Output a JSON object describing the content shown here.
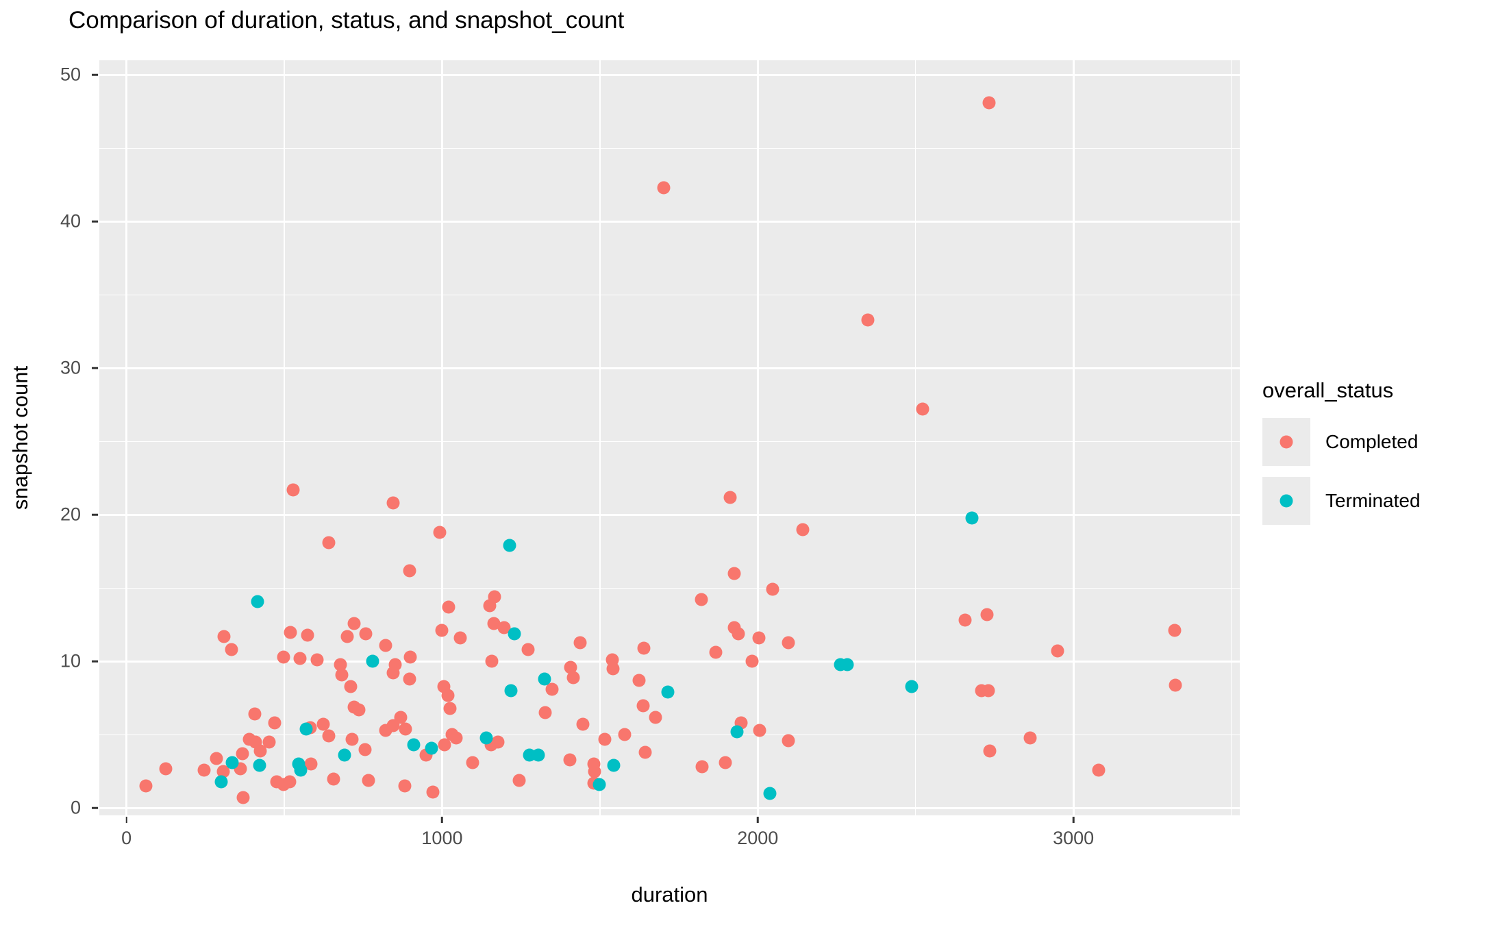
{
  "chart_data": {
    "type": "scatter",
    "title": "Comparison of duration, status, and snapshot_count",
    "xlabel": "duration",
    "ylabel": "snapshot count",
    "x_ticks": [
      0,
      1000,
      2000,
      3000
    ],
    "x_minor_ticks": [
      500,
      1500,
      2500,
      3500
    ],
    "y_ticks": [
      0,
      10,
      20,
      30,
      40,
      50
    ],
    "y_minor_ticks": [
      5,
      15,
      25,
      35,
      45
    ],
    "x_domain": [
      -86,
      3527
    ],
    "y_domain": [
      -0.5,
      51.0
    ],
    "grid": "on",
    "colors": {
      "panel_background": "#EBEBEB",
      "gridline": "#FFFFFF",
      "tick_text": "#4D4D4D",
      "axis_text": "#000000"
    },
    "legend": {
      "title": "overall_status",
      "position": "right"
    },
    "series": [
      {
        "name": "Completed",
        "color": "#F8766D",
        "points": [
          [
            62,
            1.5
          ],
          [
            125,
            2.7
          ],
          [
            246,
            2.6
          ],
          [
            285,
            3.4
          ],
          [
            307,
            2.5
          ],
          [
            309,
            11.7
          ],
          [
            333,
            10.8
          ],
          [
            361,
            2.7
          ],
          [
            368,
            3.7
          ],
          [
            370,
            0.7
          ],
          [
            390,
            4.7
          ],
          [
            407,
            6.4
          ],
          [
            409,
            4.5
          ],
          [
            424,
            3.9
          ],
          [
            452,
            4.5
          ],
          [
            470,
            5.8
          ],
          [
            475,
            1.8
          ],
          [
            497,
            1.6
          ],
          [
            498,
            10.3
          ],
          [
            518,
            1.8
          ],
          [
            520,
            12.0
          ],
          [
            528,
            21.7
          ],
          [
            550,
            10.2
          ],
          [
            574,
            11.8
          ],
          [
            583,
            5.5
          ],
          [
            585,
            3.0
          ],
          [
            604,
            10.1
          ],
          [
            624,
            5.7
          ],
          [
            640,
            4.9
          ],
          [
            641,
            18.1
          ],
          [
            657,
            2.0
          ],
          [
            678,
            9.8
          ],
          [
            683,
            9.1
          ],
          [
            700,
            11.7
          ],
          [
            710,
            8.3
          ],
          [
            715,
            4.7
          ],
          [
            721,
            12.6
          ],
          [
            721,
            6.9
          ],
          [
            737,
            6.7
          ],
          [
            756,
            4.0
          ],
          [
            758,
            11.9
          ],
          [
            767,
            1.9
          ],
          [
            820,
            11.1
          ],
          [
            821,
            5.3
          ],
          [
            845,
            20.8
          ],
          [
            845,
            9.2
          ],
          [
            845,
            5.6
          ],
          [
            851,
            9.8
          ],
          [
            869,
            6.2
          ],
          [
            882,
            1.5
          ],
          [
            885,
            5.4
          ],
          [
            897,
            16.2
          ],
          [
            897,
            8.8
          ],
          [
            900,
            10.3
          ],
          [
            950,
            3.6
          ],
          [
            971,
            1.1
          ],
          [
            993,
            18.8
          ],
          [
            1000,
            12.1
          ],
          [
            1006,
            8.3
          ],
          [
            1008,
            4.3
          ],
          [
            1019,
            7.7
          ],
          [
            1020,
            13.7
          ],
          [
            1025,
            6.8
          ],
          [
            1032,
            5.0
          ],
          [
            1045,
            4.8
          ],
          [
            1058,
            11.6
          ],
          [
            1097,
            3.1
          ],
          [
            1150,
            13.8
          ],
          [
            1156,
            4.3
          ],
          [
            1158,
            10.0
          ],
          [
            1164,
            12.6
          ],
          [
            1165,
            14.4
          ],
          [
            1178,
            4.5
          ],
          [
            1197,
            12.3
          ],
          [
            1245,
            1.9
          ],
          [
            1273,
            10.8
          ],
          [
            1327,
            6.5
          ],
          [
            1349,
            8.1
          ],
          [
            1405,
            3.3
          ],
          [
            1408,
            9.6
          ],
          [
            1416,
            8.9
          ],
          [
            1438,
            11.3
          ],
          [
            1447,
            5.7
          ],
          [
            1481,
            3.0
          ],
          [
            1481,
            1.7
          ],
          [
            1483,
            2.5
          ],
          [
            1516,
            4.7
          ],
          [
            1540,
            10.1
          ],
          [
            1542,
            9.5
          ],
          [
            1579,
            5.0
          ],
          [
            1625,
            8.7
          ],
          [
            1636,
            7.0
          ],
          [
            1640,
            10.9
          ],
          [
            1644,
            3.8
          ],
          [
            1677,
            6.2
          ],
          [
            1701,
            42.3
          ],
          [
            1822,
            14.2
          ],
          [
            1823,
            2.8
          ],
          [
            1868,
            10.6
          ],
          [
            1898,
            3.1
          ],
          [
            1913,
            21.2
          ],
          [
            1925,
            16.0
          ],
          [
            1926,
            12.3
          ],
          [
            1939,
            11.9
          ],
          [
            1948,
            5.8
          ],
          [
            1983,
            10.0
          ],
          [
            2004,
            11.6
          ],
          [
            2005,
            5.3
          ],
          [
            2047,
            14.9
          ],
          [
            2096,
            11.3
          ],
          [
            2098,
            4.6
          ],
          [
            2143,
            19.0
          ],
          [
            2349,
            33.3
          ],
          [
            2523,
            27.2
          ],
          [
            2656,
            12.8
          ],
          [
            2710,
            8.0
          ],
          [
            2727,
            13.2
          ],
          [
            2730,
            8.0
          ],
          [
            2732,
            48.1
          ],
          [
            2736,
            3.9
          ],
          [
            2862,
            4.8
          ],
          [
            2949,
            10.7
          ],
          [
            3079,
            2.6
          ],
          [
            3320,
            12.1
          ],
          [
            3322,
            8.4
          ]
        ]
      },
      {
        "name": "Terminated",
        "color": "#00BFC4",
        "points": [
          [
            300,
            1.8
          ],
          [
            335,
            3.1
          ],
          [
            415,
            14.1
          ],
          [
            422,
            2.9
          ],
          [
            546,
            3.0
          ],
          [
            551,
            2.6
          ],
          [
            569,
            5.4
          ],
          [
            691,
            3.6
          ],
          [
            780,
            10.0
          ],
          [
            910,
            4.3
          ],
          [
            967,
            4.1
          ],
          [
            1140,
            4.8
          ],
          [
            1214,
            17.9
          ],
          [
            1219,
            8.0
          ],
          [
            1230,
            11.9
          ],
          [
            1277,
            3.6
          ],
          [
            1305,
            3.6
          ],
          [
            1325,
            8.8
          ],
          [
            1499,
            1.6
          ],
          [
            1544,
            2.9
          ],
          [
            1716,
            7.9
          ],
          [
            1935,
            5.2
          ],
          [
            2039,
            1.0
          ],
          [
            2262,
            9.8
          ],
          [
            2283,
            9.8
          ],
          [
            2488,
            8.3
          ],
          [
            2679,
            19.8
          ]
        ]
      }
    ]
  }
}
